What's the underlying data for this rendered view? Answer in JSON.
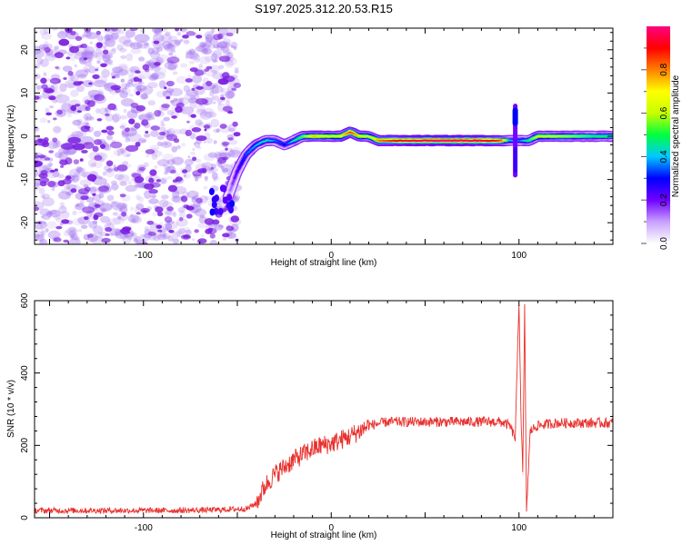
{
  "title": "S197.2025.312.20.53.R15",
  "chart_data": [
    {
      "type": "heatmap",
      "name": "spectrogram",
      "xlabel": "Height of straight line (km)",
      "ylabel": "Frequency (Hz)",
      "xlim": [
        -158,
        150
      ],
      "ylim": [
        -25,
        25
      ],
      "xticks": [
        -100,
        0,
        100
      ],
      "yticks": [
        -20,
        -10,
        0,
        10,
        20
      ],
      "noise_region": [
        -158,
        -50
      ],
      "noise_color": "#7a1fe0",
      "ridge": {
        "x": [
          -55,
          -50,
          -45,
          -40,
          -35,
          -30,
          -25,
          -20,
          -15,
          -10,
          -5,
          0,
          5,
          10,
          15,
          20,
          25,
          40,
          60,
          80,
          90,
          95,
          100,
          105,
          110,
          120,
          130,
          140,
          150
        ],
        "y": [
          -14,
          -8,
          -4,
          -2,
          -1,
          -1,
          -2,
          -1,
          0,
          0,
          0,
          0,
          0,
          1,
          0,
          0,
          -1,
          -1,
          -1,
          -1,
          -1,
          -1,
          -1,
          -1,
          0,
          0,
          0,
          0,
          0
        ],
        "amp": [
          0.1,
          0.25,
          0.35,
          0.4,
          0.45,
          0.35,
          0.3,
          0.45,
          0.55,
          0.75,
          0.7,
          0.65,
          0.7,
          0.85,
          0.7,
          0.6,
          0.8,
          0.95,
          1.0,
          0.95,
          0.85,
          0.4,
          0.35,
          0.5,
          0.65,
          0.6,
          0.55,
          0.5,
          0.5
        ]
      },
      "spike": {
        "x": 98,
        "ymin": -9,
        "ymax": 7
      }
    },
    {
      "type": "colorbar",
      "label": "Normalized spectral amplitude",
      "range": [
        0.0,
        1.0
      ],
      "ticks": [
        0.0,
        0.2,
        0.4,
        0.6,
        0.8
      ],
      "tick_labels": [
        "0.0",
        "0.2",
        "0.4",
        "0.6",
        "0.8"
      ],
      "colors": [
        "#ffffff",
        "#c8a0ff",
        "#7000ff",
        "#0000ff",
        "#00c8ff",
        "#00ff40",
        "#c8ff00",
        "#ffff00",
        "#ff8000",
        "#ff0000",
        "#ff0080"
      ]
    },
    {
      "type": "line",
      "name": "snr",
      "xlabel": "Height of straight line (km)",
      "ylabel": "SNR (10 * v/v)",
      "xlim": [
        -158,
        150
      ],
      "ylim": [
        0,
        600
      ],
      "xticks": [
        -100,
        0,
        100
      ],
      "yticks": [
        0,
        200,
        400,
        600
      ],
      "line_color": "#e8312e",
      "series": [
        {
          "name": "SNR",
          "x": [
            -158,
            -140,
            -120,
            -100,
            -80,
            -60,
            -45,
            -40,
            -35,
            -30,
            -25,
            -20,
            -15,
            -10,
            -5,
            0,
            5,
            10,
            15,
            20,
            25,
            30,
            40,
            60,
            80,
            90,
            95,
            98,
            100,
            101,
            102,
            103,
            104,
            106,
            110,
            120,
            130,
            140,
            150
          ],
          "y": [
            20,
            20,
            20,
            20,
            20,
            22,
            25,
            40,
            90,
            120,
            140,
            160,
            175,
            190,
            200,
            205,
            215,
            225,
            240,
            255,
            260,
            265,
            265,
            265,
            265,
            265,
            255,
            220,
            600,
            300,
            120,
            580,
            20,
            240,
            255,
            262,
            262,
            262,
            262
          ]
        }
      ]
    }
  ]
}
